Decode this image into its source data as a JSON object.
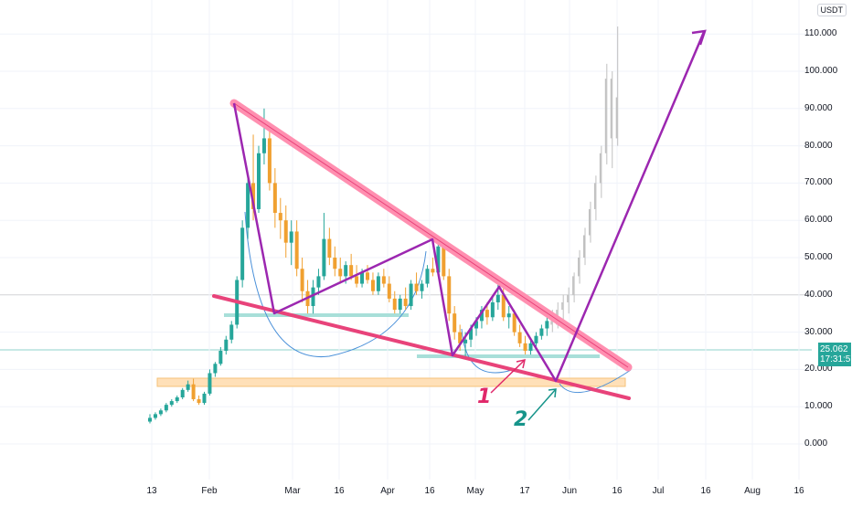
{
  "chart_data": {
    "type": "candlestick",
    "currency": "USDT",
    "y_ticks": [
      "110.000",
      "100.000",
      "90.000",
      "80.000",
      "70.000",
      "60.000",
      "50.000",
      "40.000",
      "30.000",
      "20.000",
      "10.000",
      "0.000"
    ],
    "x_ticks": [
      "13",
      "Feb",
      "Mar",
      "16",
      "Apr",
      "16",
      "May",
      "17",
      "Jun",
      "16",
      "Jul",
      "16",
      "Aug",
      "16"
    ],
    "last_price": "25.062",
    "countdown": "17:31:57",
    "candles": [
      {
        "t": 0,
        "o": 6,
        "h": 8,
        "l": 5.5,
        "c": 7
      },
      {
        "t": 1,
        "o": 7,
        "h": 8.5,
        "l": 6.5,
        "c": 8
      },
      {
        "t": 2,
        "o": 8,
        "h": 9.5,
        "l": 7.5,
        "c": 9
      },
      {
        "t": 3,
        "o": 9,
        "h": 11,
        "l": 8.5,
        "c": 10.5
      },
      {
        "t": 4,
        "o": 10.5,
        "h": 12,
        "l": 10,
        "c": 11.5
      },
      {
        "t": 5,
        "o": 11.5,
        "h": 13,
        "l": 11,
        "c": 12.5
      },
      {
        "t": 6,
        "o": 12.5,
        "h": 15,
        "l": 12,
        "c": 14.5
      },
      {
        "t": 7,
        "o": 14.5,
        "h": 17,
        "l": 14,
        "c": 16
      },
      {
        "t": 8,
        "o": 16,
        "h": 17.5,
        "l": 11.5,
        "c": 12
      },
      {
        "t": 9,
        "o": 12,
        "h": 13,
        "l": 10.5,
        "c": 11
      },
      {
        "t": 10,
        "o": 11,
        "h": 14,
        "l": 10.5,
        "c": 13.5
      },
      {
        "t": 11,
        "o": 13.5,
        "h": 20,
        "l": 13,
        "c": 19
      },
      {
        "t": 12,
        "o": 19,
        "h": 22,
        "l": 18,
        "c": 21.5
      },
      {
        "t": 13,
        "o": 21.5,
        "h": 26,
        "l": 21,
        "c": 25
      },
      {
        "t": 14,
        "o": 25,
        "h": 29,
        "l": 24,
        "c": 28
      },
      {
        "t": 15,
        "o": 28,
        "h": 33,
        "l": 27,
        "c": 32
      },
      {
        "t": 16,
        "o": 32,
        "h": 45,
        "l": 31,
        "c": 44
      },
      {
        "t": 17,
        "o": 44,
        "h": 60,
        "l": 42,
        "c": 58
      },
      {
        "t": 18,
        "o": 58,
        "h": 72,
        "l": 55,
        "c": 70
      },
      {
        "t": 19,
        "o": 70,
        "h": 83,
        "l": 60,
        "c": 63
      },
      {
        "t": 20,
        "o": 63,
        "h": 80,
        "l": 62,
        "c": 78
      },
      {
        "t": 21,
        "o": 78,
        "h": 90,
        "l": 75,
        "c": 82
      },
      {
        "t": 22,
        "o": 82,
        "h": 85,
        "l": 68,
        "c": 70
      },
      {
        "t": 23,
        "o": 70,
        "h": 74,
        "l": 58,
        "c": 62
      },
      {
        "t": 24,
        "o": 62,
        "h": 66,
        "l": 55,
        "c": 60
      },
      {
        "t": 25,
        "o": 60,
        "h": 64,
        "l": 50,
        "c": 54
      },
      {
        "t": 26,
        "o": 54,
        "h": 60,
        "l": 48,
        "c": 57
      },
      {
        "t": 27,
        "o": 57,
        "h": 60,
        "l": 45,
        "c": 47
      },
      {
        "t": 28,
        "o": 47,
        "h": 50,
        "l": 38,
        "c": 41
      },
      {
        "t": 29,
        "o": 41,
        "h": 44,
        "l": 35,
        "c": 37
      },
      {
        "t": 30,
        "o": 37,
        "h": 44,
        "l": 35,
        "c": 42
      },
      {
        "t": 31,
        "o": 42,
        "h": 47,
        "l": 40,
        "c": 45
      },
      {
        "t": 32,
        "o": 45,
        "h": 62,
        "l": 44,
        "c": 55
      },
      {
        "t": 33,
        "o": 55,
        "h": 58,
        "l": 48,
        "c": 50
      },
      {
        "t": 34,
        "o": 50,
        "h": 53,
        "l": 45,
        "c": 47
      },
      {
        "t": 35,
        "o": 47,
        "h": 50,
        "l": 43,
        "c": 45
      },
      {
        "t": 36,
        "o": 45,
        "h": 49,
        "l": 43,
        "c": 48
      },
      {
        "t": 37,
        "o": 48,
        "h": 51,
        "l": 44,
        "c": 45
      },
      {
        "t": 38,
        "o": 45,
        "h": 48,
        "l": 42,
        "c": 43
      },
      {
        "t": 39,
        "o": 43,
        "h": 47,
        "l": 42,
        "c": 46
      },
      {
        "t": 40,
        "o": 46,
        "h": 48,
        "l": 43,
        "c": 44
      },
      {
        "t": 41,
        "o": 44,
        "h": 46,
        "l": 40,
        "c": 41
      },
      {
        "t": 42,
        "o": 41,
        "h": 46,
        "l": 40,
        "c": 45
      },
      {
        "t": 43,
        "o": 45,
        "h": 47,
        "l": 42,
        "c": 43
      },
      {
        "t": 44,
        "o": 43,
        "h": 45,
        "l": 38,
        "c": 39
      },
      {
        "t": 45,
        "o": 39,
        "h": 41,
        "l": 35,
        "c": 36
      },
      {
        "t": 46,
        "o": 36,
        "h": 40,
        "l": 35,
        "c": 39
      },
      {
        "t": 47,
        "o": 39,
        "h": 42,
        "l": 36,
        "c": 37
      },
      {
        "t": 48,
        "o": 37,
        "h": 44,
        "l": 36,
        "c": 43
      },
      {
        "t": 49,
        "o": 43,
        "h": 46,
        "l": 40,
        "c": 41
      },
      {
        "t": 50,
        "o": 41,
        "h": 44,
        "l": 39,
        "c": 43
      },
      {
        "t": 51,
        "o": 43,
        "h": 48,
        "l": 42,
        "c": 47
      },
      {
        "t": 52,
        "o": 47,
        "h": 50,
        "l": 45,
        "c": 46
      },
      {
        "t": 53,
        "o": 46,
        "h": 55,
        "l": 45,
        "c": 53
      },
      {
        "t": 54,
        "o": 53,
        "h": 55,
        "l": 44,
        "c": 45
      },
      {
        "t": 55,
        "o": 45,
        "h": 47,
        "l": 33,
        "c": 35
      },
      {
        "t": 56,
        "o": 35,
        "h": 37,
        "l": 28,
        "c": 30
      },
      {
        "t": 57,
        "o": 30,
        "h": 32,
        "l": 25,
        "c": 27
      },
      {
        "t": 58,
        "o": 27,
        "h": 30,
        "l": 23,
        "c": 28
      },
      {
        "t": 59,
        "o": 28,
        "h": 32,
        "l": 26,
        "c": 31
      },
      {
        "t": 60,
        "o": 31,
        "h": 34,
        "l": 29,
        "c": 33
      },
      {
        "t": 61,
        "o": 33,
        "h": 37,
        "l": 31,
        "c": 36
      },
      {
        "t": 62,
        "o": 36,
        "h": 38,
        "l": 32,
        "c": 34
      },
      {
        "t": 63,
        "o": 34,
        "h": 40,
        "l": 33,
        "c": 38
      },
      {
        "t": 64,
        "o": 38,
        "h": 43,
        "l": 36,
        "c": 40
      },
      {
        "t": 65,
        "o": 40,
        "h": 42,
        "l": 33,
        "c": 34
      },
      {
        "t": 66,
        "o": 34,
        "h": 37,
        "l": 31,
        "c": 35
      },
      {
        "t": 67,
        "o": 35,
        "h": 36,
        "l": 29,
        "c": 30
      },
      {
        "t": 68,
        "o": 30,
        "h": 32,
        "l": 26,
        "c": 27
      },
      {
        "t": 69,
        "o": 27,
        "h": 29,
        "l": 24,
        "c": 25
      },
      {
        "t": 70,
        "o": 25,
        "h": 28,
        "l": 24,
        "c": 27
      },
      {
        "t": 71,
        "o": 27,
        "h": 30,
        "l": 26,
        "c": 29
      },
      {
        "t": 72,
        "o": 29,
        "h": 32,
        "l": 28,
        "c": 31
      },
      {
        "t": 73,
        "o": 31,
        "h": 34,
        "l": 29,
        "c": 33
      },
      {
        "t": 74,
        "o": 33,
        "h": 36,
        "l": 30,
        "c": 32
      },
      {
        "t": 75,
        "o": 32,
        "h": 38,
        "l": 31,
        "c": 36
      },
      {
        "t": 76,
        "o": 36,
        "h": 40,
        "l": 33,
        "c": 38
      },
      {
        "t": 77,
        "o": 38,
        "h": 42,
        "l": 35,
        "c": 40
      },
      {
        "t": 78,
        "o": 40,
        "h": 46,
        "l": 38,
        "c": 45
      },
      {
        "t": 79,
        "o": 45,
        "h": 52,
        "l": 43,
        "c": 50
      },
      {
        "t": 80,
        "o": 50,
        "h": 58,
        "l": 48,
        "c": 56
      },
      {
        "t": 81,
        "o": 56,
        "h": 65,
        "l": 54,
        "c": 63
      },
      {
        "t": 82,
        "o": 63,
        "h": 72,
        "l": 60,
        "c": 70
      },
      {
        "t": 83,
        "o": 70,
        "h": 80,
        "l": 66,
        "c": 78
      },
      {
        "t": 84,
        "o": 78,
        "h": 102,
        "l": 75,
        "c": 98
      },
      {
        "t": 85,
        "o": 98,
        "h": 100,
        "l": 74,
        "c": 82
      },
      {
        "t": 86,
        "o": 82,
        "h": 112,
        "l": 80,
        "c": 93
      }
    ]
  },
  "annotations": {
    "label_1": "1",
    "label_2": "2",
    "colors": {
      "wedge_band": "#ff8fb0",
      "wedge_edge": "#e8437a",
      "zigzag": "#9c27b0",
      "support_teal": "#a8dfd9",
      "support_orange": "#ffe0b8",
      "label1": "#e0286a",
      "label2": "#16948a",
      "up_candle": "#26a69a",
      "down_candle": "#f0a030",
      "future_candle": "#c0c0c0"
    }
  }
}
